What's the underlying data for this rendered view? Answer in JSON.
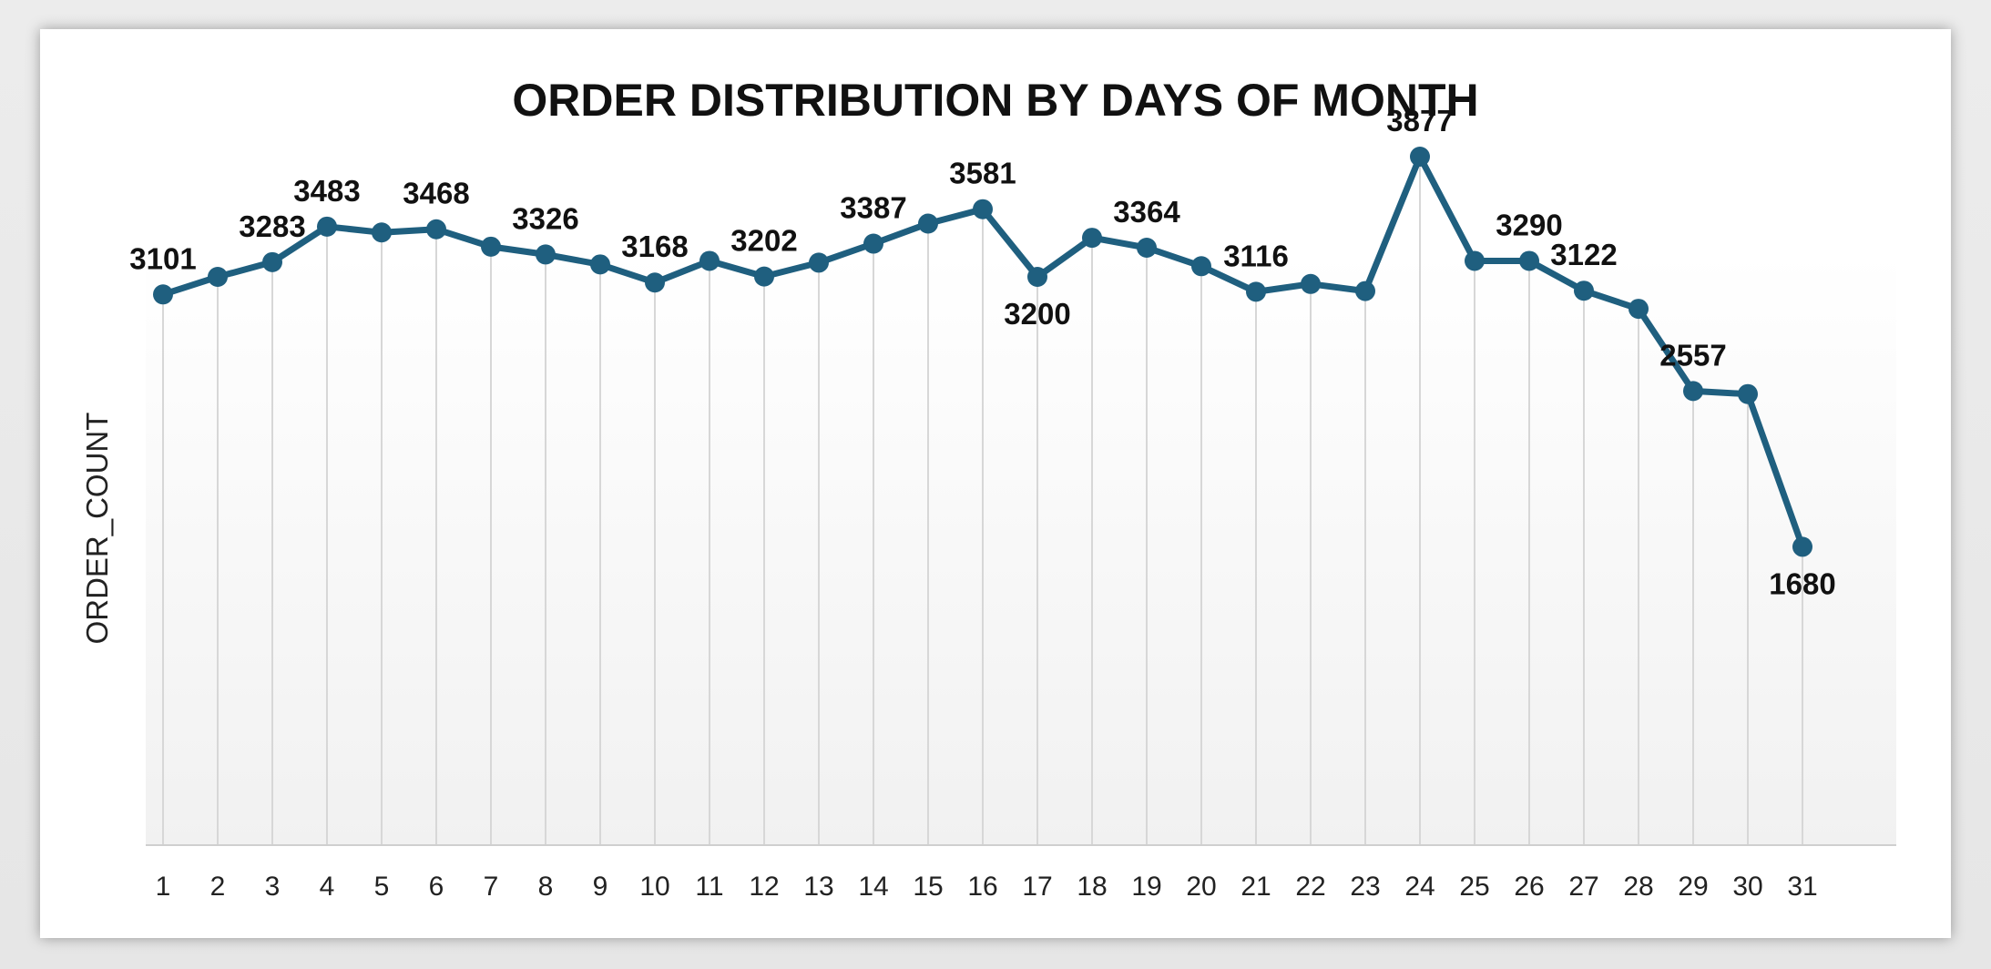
{
  "chart_data": {
    "type": "line",
    "title": "ORDER DISTRIBUTION BY DAYS OF MONTH",
    "xlabel": "",
    "ylabel": "ORDER_COUNT",
    "categories": [
      "1",
      "2",
      "3",
      "4",
      "5",
      "6",
      "7",
      "8",
      "9",
      "10",
      "11",
      "12",
      "13",
      "14",
      "15",
      "16",
      "17",
      "18",
      "19",
      "20",
      "21",
      "22",
      "23",
      "24",
      "25",
      "26",
      "27",
      "28",
      "29",
      "30",
      "31"
    ],
    "series": [
      {
        "values": [
          3101,
          3200,
          3283,
          3483,
          3450,
          3468,
          3370,
          3326,
          3270,
          3168,
          3290,
          3202,
          3280,
          3387,
          3500,
          3581,
          3200,
          3420,
          3364,
          3260,
          3116,
          3160,
          3120,
          3877,
          3290,
          3290,
          3122,
          3020,
          2557,
          2540,
          1680
        ],
        "color": "#1f5f7f"
      }
    ],
    "data_labels": [
      {
        "index": 0,
        "text": "3101",
        "position": "above"
      },
      {
        "index": 2,
        "text": "3283",
        "position": "above"
      },
      {
        "index": 3,
        "text": "3483",
        "position": "above"
      },
      {
        "index": 5,
        "text": "3468",
        "position": "above"
      },
      {
        "index": 7,
        "text": "3326",
        "position": "above"
      },
      {
        "index": 9,
        "text": "3168",
        "position": "above"
      },
      {
        "index": 11,
        "text": "3202",
        "position": "above"
      },
      {
        "index": 13,
        "text": "3387",
        "position": "above"
      },
      {
        "index": 15,
        "text": "3581",
        "position": "above"
      },
      {
        "index": 16,
        "text": "3200",
        "position": "below"
      },
      {
        "index": 18,
        "text": "3364",
        "position": "above"
      },
      {
        "index": 20,
        "text": "3116",
        "position": "above"
      },
      {
        "index": 23,
        "text": "3877",
        "position": "above"
      },
      {
        "index": 25,
        "text": "3290",
        "position": "above"
      },
      {
        "index": 26,
        "text": "3122",
        "position": "above"
      },
      {
        "index": 28,
        "text": "2557",
        "position": "above"
      },
      {
        "index": 30,
        "text": "1680",
        "position": "below"
      }
    ],
    "ylim": [
      0,
      4000
    ],
    "grid": "vertical",
    "legend": "none"
  }
}
